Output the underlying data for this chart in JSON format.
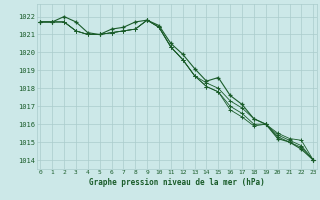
{
  "title": "Graphe pression niveau de la mer (hPa)",
  "background_color": "#cce8e8",
  "grid_color": "#aacccc",
  "line_color": "#1a5c2a",
  "xlim": [
    -0.3,
    23.3
  ],
  "ylim": [
    1013.5,
    1022.7
  ],
  "yticks": [
    1014,
    1015,
    1016,
    1017,
    1018,
    1019,
    1020,
    1021,
    1022
  ],
  "xticks": [
    0,
    1,
    2,
    3,
    4,
    5,
    6,
    7,
    8,
    9,
    10,
    11,
    12,
    13,
    14,
    15,
    16,
    17,
    18,
    19,
    20,
    21,
    22,
    23
  ],
  "series": [
    [
      1021.7,
      1021.7,
      1022.0,
      1021.7,
      1021.1,
      1021.0,
      1021.3,
      1021.4,
      1021.7,
      1021.8,
      1021.5,
      1020.5,
      1019.9,
      1019.1,
      1018.4,
      1018.6,
      1017.6,
      1017.1,
      1016.3,
      1016.0,
      1015.2,
      1015.0,
      1014.6,
      1014.0
    ],
    [
      1021.7,
      1021.7,
      1021.7,
      1021.2,
      1021.0,
      1021.0,
      1021.1,
      1021.2,
      1021.3,
      1021.8,
      1021.4,
      1020.3,
      1019.6,
      1018.7,
      1018.3,
      1018.0,
      1017.3,
      1016.9,
      1016.3,
      1016.0,
      1015.5,
      1015.2,
      1015.1,
      1014.0
    ],
    [
      1021.7,
      1021.7,
      1021.7,
      1021.2,
      1021.0,
      1021.0,
      1021.1,
      1021.2,
      1021.3,
      1021.8,
      1021.4,
      1020.3,
      1019.6,
      1018.7,
      1018.1,
      1017.8,
      1017.0,
      1016.6,
      1016.0,
      1016.0,
      1015.4,
      1015.1,
      1014.8,
      1014.0
    ],
    [
      1021.7,
      1021.7,
      1021.7,
      1021.2,
      1021.0,
      1021.0,
      1021.1,
      1021.2,
      1021.3,
      1021.8,
      1021.4,
      1020.3,
      1019.6,
      1018.7,
      1018.1,
      1017.8,
      1016.8,
      1016.4,
      1015.9,
      1016.0,
      1015.3,
      1015.0,
      1014.7,
      1014.0
    ]
  ]
}
